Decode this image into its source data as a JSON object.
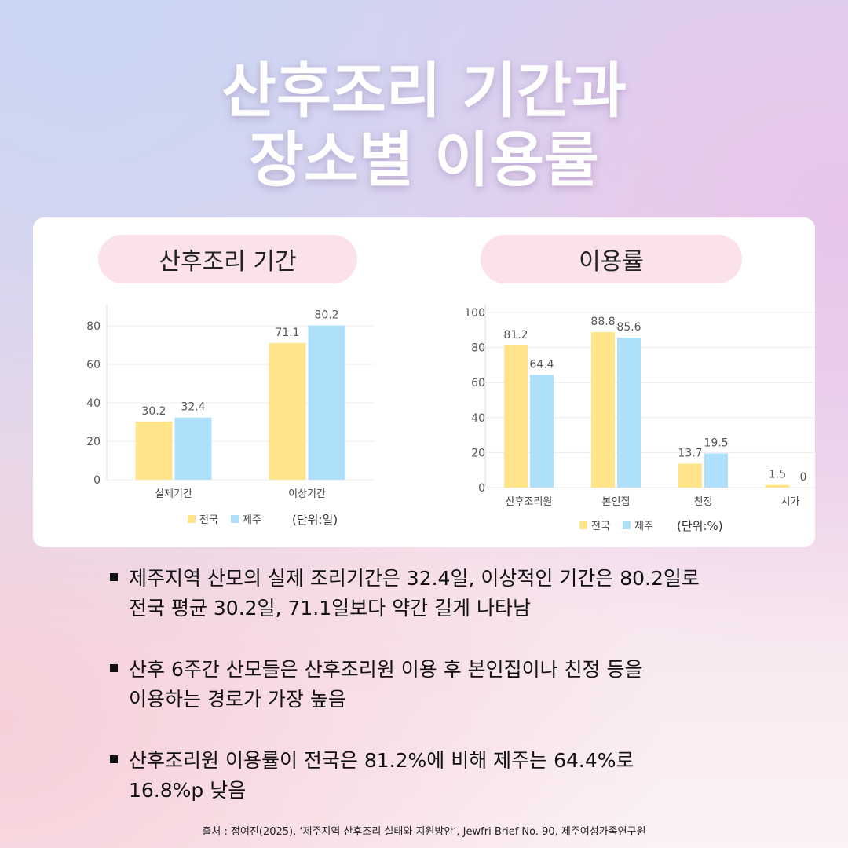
{
  "title": {
    "line1": "산후조리 기간과",
    "line2": "장소별 이용률"
  },
  "chart_data": [
    {
      "type": "bar",
      "title": "산후조리 기간",
      "categories": [
        "실제기간",
        "이상기간"
      ],
      "series": [
        {
          "name": "전국",
          "values": [
            30.2,
            71.1
          ],
          "color": "#ffe48b"
        },
        {
          "name": "제주",
          "values": [
            32.4,
            80.2
          ],
          "color": "#aee0fb"
        }
      ],
      "ylim": [
        0,
        80
      ],
      "yticks": [
        "0",
        "20",
        "40",
        "60",
        "80"
      ],
      "unit": "(단위:일)",
      "legend": "bottom",
      "grid": true
    },
    {
      "type": "bar",
      "title": "이용률",
      "categories": [
        "산후조리원",
        "본인집",
        "친정",
        "시가"
      ],
      "series": [
        {
          "name": "전국",
          "values": [
            81.2,
            88.8,
            13.7,
            1.5
          ],
          "color": "#ffe48b"
        },
        {
          "name": "제주",
          "values": [
            64.4,
            85.6,
            19.5,
            0
          ],
          "color": "#aee0fb"
        }
      ],
      "ylim": [
        0,
        100
      ],
      "yticks": [
        "0",
        "20",
        "40",
        "60",
        "80",
        "100"
      ],
      "unit": "(단위:%)",
      "legend": "bottom",
      "grid": true
    }
  ],
  "bullets": [
    {
      "line1": "제주지역 산모의 실제 조리기간은 32.4일, 이상적인 기간은 80.2일로",
      "line2": "전국 평균 30.2일, 71.1일보다 약간 길게 나타남"
    },
    {
      "line1": "산후 6주간  산모들은 산후조리원 이용 후 본인집이나 친정 등을",
      "line2": "이용하는 경로가 가장 높음"
    },
    {
      "line1": "산후조리원 이용률이  전국은 81.2%에 비해 제주는 64.4%로",
      "line2": "16.8%p 낮음"
    }
  ],
  "source": "출처 : 정여진(2025). ‘제주지역 산후조리 실태와 지원방안’, Jewfri Brief No. 90, 제주여성가족연구원"
}
